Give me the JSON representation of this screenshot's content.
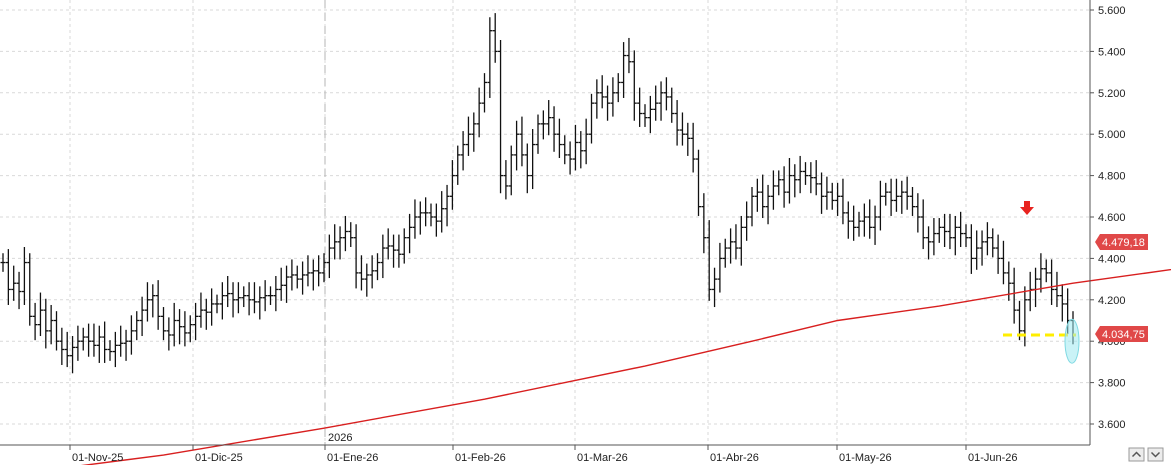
{
  "chart_data": {
    "type": "ohlc",
    "title": "",
    "xlabel": "",
    "ylabel": "",
    "ylim": [
      3.5,
      5.65
    ],
    "y_ticks": [
      "5.600",
      "5.400",
      "5.200",
      "5.000",
      "4.800",
      "4.600",
      "4.400",
      "4.200",
      "4.000",
      "3.800",
      "3.600"
    ],
    "y_tick_values": [
      5.6,
      5.4,
      5.2,
      5.0,
      4.8,
      4.6,
      4.4,
      4.2,
      4.0,
      3.8,
      3.6
    ],
    "x_ticks": [
      "01-Nov-25",
      "01-Dic-25",
      "01-Ene-26",
      "01-Feb-26",
      "01-Mar-26",
      "01-Abr-26",
      "01-May-26",
      "01-Jun-26"
    ],
    "year_marker": "2026",
    "grid": true,
    "moving_average": {
      "color": "#d81f1f",
      "last_value": 4.47918,
      "last_label": "4.479,18",
      "points": [
        [
          0.0,
          3.35
        ],
        [
          30.0,
          3.45
        ],
        [
          60.0,
          3.58
        ],
        [
          90.0,
          3.72
        ],
        [
          120.0,
          3.88
        ],
        [
          140.0,
          4.0
        ],
        [
          156.0,
          4.1
        ],
        [
          175.0,
          4.17
        ],
        [
          200.0,
          4.28
        ],
        [
          225.0,
          4.37
        ],
        [
          245.0,
          4.44
        ],
        [
          260.0,
          4.48
        ]
      ]
    },
    "current_price": {
      "value": 4.03475,
      "label": "4.034,75",
      "color": "#e04848"
    },
    "support_level": {
      "value": 4.03,
      "color": "#ffee00"
    },
    "bars": [
      [
        0,
        4.38
      ],
      [
        1,
        4.25
      ],
      [
        2,
        4.28
      ],
      [
        3,
        4.24
      ],
      [
        4,
        4.38
      ],
      [
        5,
        4.12
      ],
      [
        6,
        4.08
      ],
      [
        7,
        4.15
      ],
      [
        8,
        4.05
      ],
      [
        9,
        4.1
      ],
      [
        10,
        4.0
      ],
      [
        11,
        3.96
      ],
      [
        12,
        3.93
      ],
      [
        13,
        3.97
      ],
      [
        14,
        4.0
      ],
      [
        15,
        4.02
      ],
      [
        16,
        4.0
      ],
      [
        17,
        3.98
      ],
      [
        18,
        4.02
      ],
      [
        19,
        3.96
      ],
      [
        20,
        3.95
      ],
      [
        21,
        3.98
      ],
      [
        22,
        3.99
      ],
      [
        23,
        4.0
      ],
      [
        24,
        4.05
      ],
      [
        25,
        4.1
      ],
      [
        26,
        4.15
      ],
      [
        27,
        4.2
      ],
      [
        28,
        4.22
      ],
      [
        29,
        4.12
      ],
      [
        30,
        4.05
      ],
      [
        31,
        4.03
      ],
      [
        32,
        4.1
      ],
      [
        33,
        4.07
      ],
      [
        34,
        4.04
      ],
      [
        35,
        4.08
      ],
      [
        36,
        4.12
      ],
      [
        37,
        4.15
      ],
      [
        38,
        4.14
      ],
      [
        39,
        4.18
      ],
      [
        40,
        4.18
      ],
      [
        41,
        4.22
      ],
      [
        42,
        4.23
      ],
      [
        43,
        4.2
      ],
      [
        44,
        4.21
      ],
      [
        45,
        4.22
      ],
      [
        46,
        4.2
      ],
      [
        47,
        4.19
      ],
      [
        48,
        4.21
      ],
      [
        49,
        4.22
      ],
      [
        50,
        4.22
      ],
      [
        51,
        4.25
      ],
      [
        52,
        4.27
      ],
      [
        53,
        4.31
      ],
      [
        54,
        4.32
      ],
      [
        55,
        4.3
      ],
      [
        56,
        4.32
      ],
      [
        57,
        4.33
      ],
      [
        58,
        4.34
      ],
      [
        59,
        4.33
      ],
      [
        60,
        4.38
      ],
      [
        61,
        4.45
      ],
      [
        62,
        4.48
      ],
      [
        63,
        4.5
      ],
      [
        64,
        4.53
      ],
      [
        65,
        4.5
      ],
      [
        66,
        4.33
      ],
      [
        67,
        4.3
      ],
      [
        68,
        4.32
      ],
      [
        69,
        4.34
      ],
      [
        70,
        4.38
      ],
      [
        71,
        4.45
      ],
      [
        72,
        4.46
      ],
      [
        73,
        4.44
      ],
      [
        74,
        4.42
      ],
      [
        75,
        4.5
      ],
      [
        76,
        4.55
      ],
      [
        77,
        4.6
      ],
      [
        78,
        4.62
      ],
      [
        79,
        4.62
      ],
      [
        80,
        4.6
      ],
      [
        81,
        4.58
      ],
      [
        82,
        4.64
      ],
      [
        83,
        4.7
      ],
      [
        84,
        4.8
      ],
      [
        85,
        4.9
      ],
      [
        86,
        4.95
      ],
      [
        87,
        5.0
      ],
      [
        88,
        5.05
      ],
      [
        89,
        5.15
      ],
      [
        90,
        5.25
      ],
      [
        91,
        5.5
      ],
      [
        92,
        5.4
      ],
      [
        93,
        4.8
      ],
      [
        94,
        4.75
      ],
      [
        95,
        4.9
      ],
      [
        96,
        5.0
      ],
      [
        97,
        4.9
      ],
      [
        98,
        4.8
      ],
      [
        99,
        4.95
      ],
      [
        100,
        5.05
      ],
      [
        101,
        5.05
      ],
      [
        102,
        5.08
      ],
      [
        103,
        5.0
      ],
      [
        104,
        4.95
      ],
      [
        105,
        4.9
      ],
      [
        106,
        4.88
      ],
      [
        107,
        4.96
      ],
      [
        108,
        4.92
      ],
      [
        109,
        5.0
      ],
      [
        110,
        5.15
      ],
      [
        111,
        5.2
      ],
      [
        112,
        5.18
      ],
      [
        113,
        5.15
      ],
      [
        114,
        5.2
      ],
      [
        115,
        5.25
      ],
      [
        116,
        5.38
      ],
      [
        117,
        5.35
      ],
      [
        118,
        5.15
      ],
      [
        119,
        5.1
      ],
      [
        120,
        5.08
      ],
      [
        121,
        5.12
      ],
      [
        122,
        5.15
      ],
      [
        123,
        5.2
      ],
      [
        124,
        5.18
      ],
      [
        125,
        5.1
      ],
      [
        126,
        5.02
      ],
      [
        127,
        5.0
      ],
      [
        128,
        4.98
      ],
      [
        129,
        4.88
      ],
      [
        130,
        4.65
      ],
      [
        131,
        4.5
      ],
      [
        132,
        4.25
      ],
      [
        133,
        4.3
      ],
      [
        134,
        4.4
      ],
      [
        135,
        4.45
      ],
      [
        136,
        4.48
      ],
      [
        137,
        4.45
      ],
      [
        138,
        4.55
      ],
      [
        139,
        4.6
      ],
      [
        140,
        4.7
      ],
      [
        141,
        4.72
      ],
      [
        142,
        4.65
      ],
      [
        143,
        4.7
      ],
      [
        144,
        4.75
      ],
      [
        145,
        4.78
      ],
      [
        146,
        4.72
      ],
      [
        147,
        4.8
      ],
      [
        148,
        4.78
      ],
      [
        149,
        4.82
      ],
      [
        150,
        4.8
      ],
      [
        151,
        4.79
      ],
      [
        152,
        4.76
      ],
      [
        153,
        4.7
      ],
      [
        154,
        4.72
      ],
      [
        155,
        4.68
      ],
      [
        156,
        4.7
      ],
      [
        157,
        4.62
      ],
      [
        158,
        4.58
      ],
      [
        159,
        4.55
      ],
      [
        160,
        4.58
      ],
      [
        161,
        4.6
      ],
      [
        162,
        4.55
      ],
      [
        163,
        4.6
      ],
      [
        164,
        4.7
      ],
      [
        165,
        4.72
      ],
      [
        166,
        4.68
      ],
      [
        167,
        4.7
      ],
      [
        168,
        4.72
      ],
      [
        169,
        4.7
      ],
      [
        170,
        4.65
      ],
      [
        171,
        4.6
      ],
      [
        172,
        4.5
      ],
      [
        173,
        4.48
      ],
      [
        174,
        4.52
      ],
      [
        175,
        4.55
      ],
      [
        176,
        4.53
      ],
      [
        177,
        4.5
      ],
      [
        178,
        4.55
      ],
      [
        179,
        4.52
      ],
      [
        180,
        4.5
      ],
      [
        181,
        4.4
      ],
      [
        182,
        4.45
      ],
      [
        183,
        4.48
      ],
      [
        184,
        4.5
      ],
      [
        185,
        4.45
      ],
      [
        186,
        4.4
      ],
      [
        187,
        4.33
      ],
      [
        188,
        4.28
      ],
      [
        189,
        4.15
      ],
      [
        190,
        4.05
      ],
      [
        191,
        4.2
      ],
      [
        192,
        4.25
      ],
      [
        193,
        4.3
      ],
      [
        194,
        4.35
      ],
      [
        195,
        4.33
      ],
      [
        196,
        4.25
      ],
      [
        197,
        4.22
      ],
      [
        198,
        4.18
      ],
      [
        199,
        4.1
      ],
      [
        200,
        4.03
      ]
    ]
  }
}
